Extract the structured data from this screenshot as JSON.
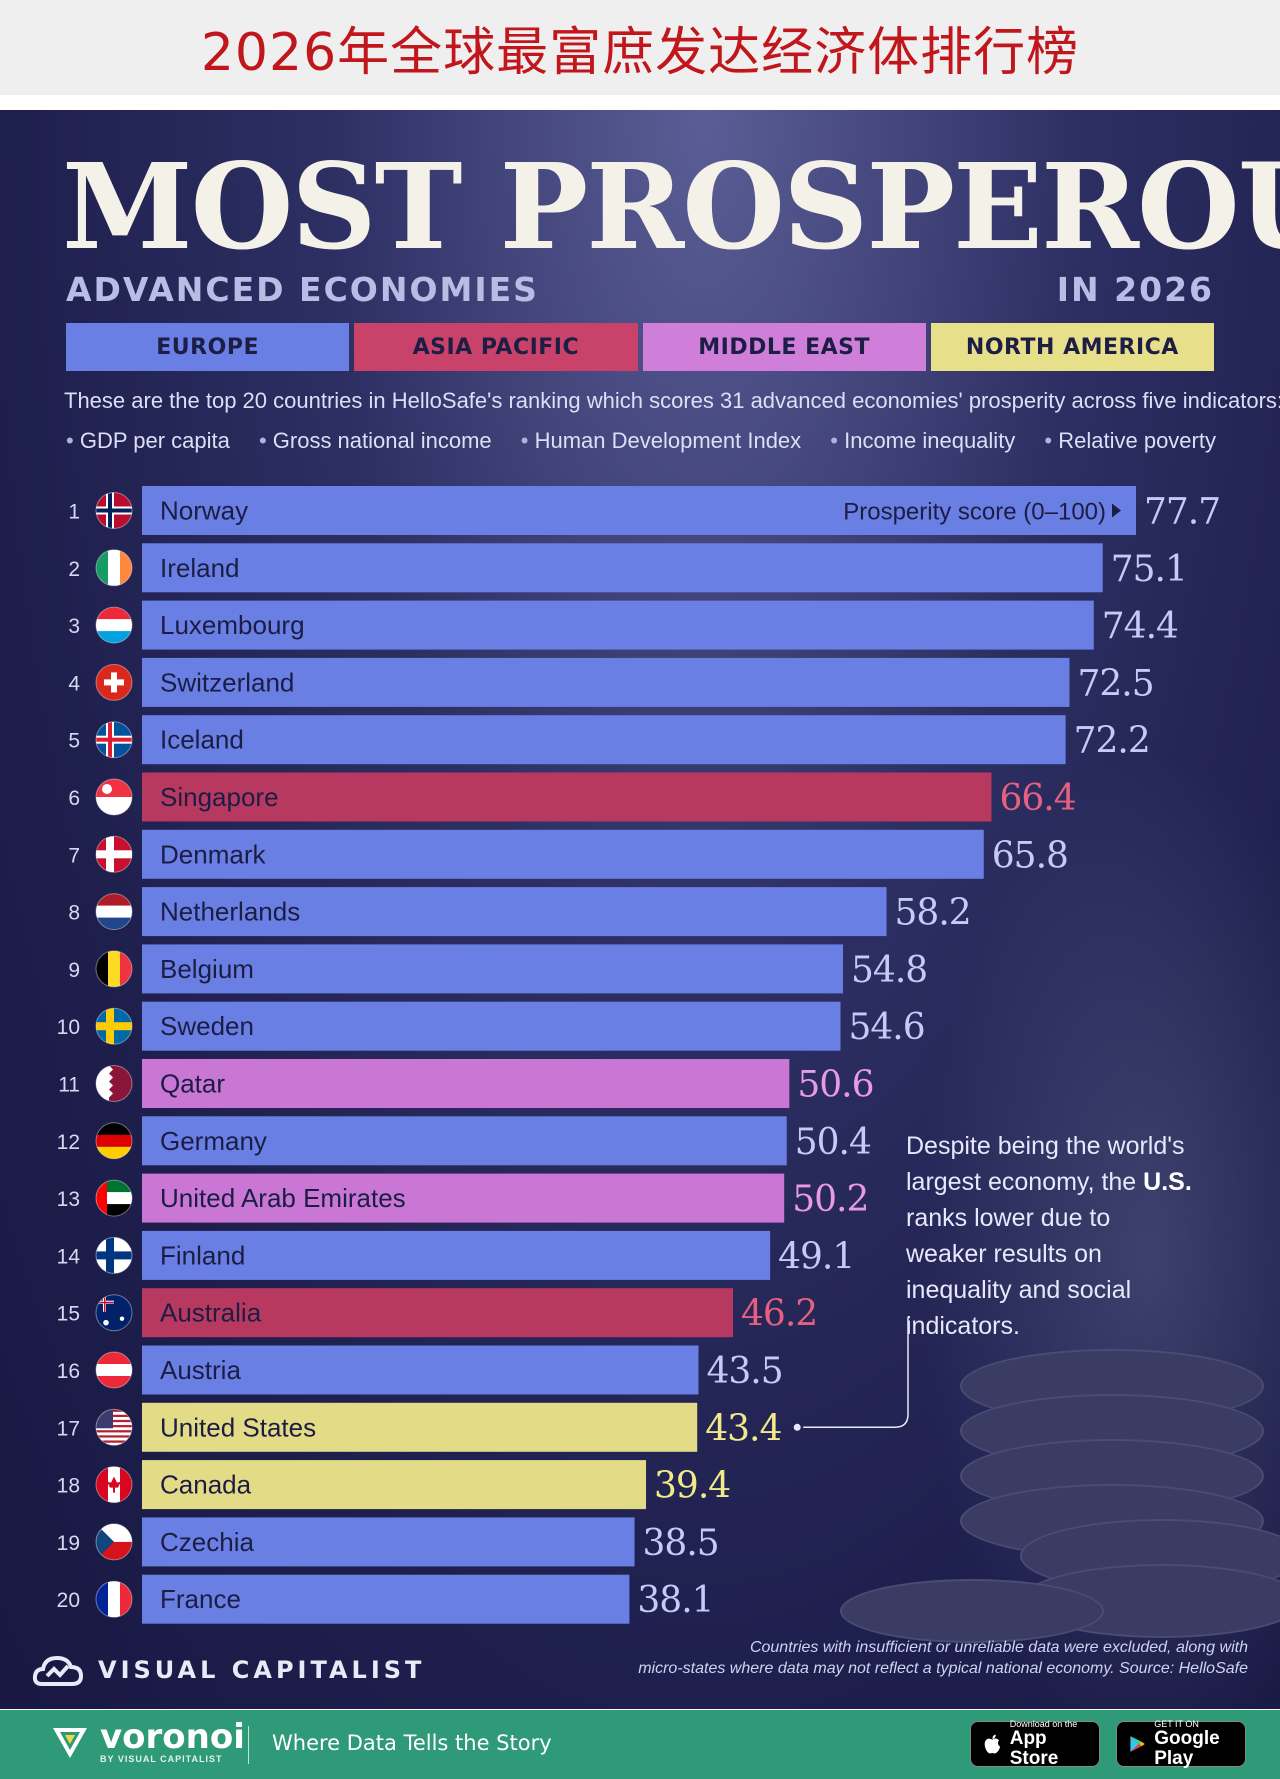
{
  "header": {
    "title": "2026年全球最富庶发达经济体排行榜"
  },
  "poster": {
    "title": "MOST PROSPEROUS",
    "subtitle_left": "ADVANCED ECONOMIES",
    "subtitle_right": "IN 2026",
    "description": "These are the top 20 countries in HelloSafe's ranking which scores 31 advanced economies' prosperity across five indicators:",
    "indicators": [
      "GDP per capita",
      "Gross national income",
      "Human Development Index",
      "Income inequality",
      "Relative poverty"
    ],
    "score_label": "Prosperity score (0–100)",
    "note_before": "Despite being the world's largest economy, the ",
    "note_bold": "U.S.",
    "note_after": " ranks lower due to weaker results on inequality and social indicators.",
    "brand": "VISUAL CAPITALIST",
    "source_line1": "Countries with insufficient or unreliable data were excluded, along with",
    "source_line2": "micro-states where data may not reflect a typical national economy. Source: HelloSafe"
  },
  "footer": {
    "brand": "voronoi",
    "brand_sub": "BY VISUAL CAPITALIST",
    "tagline": "Where Data Tells the Story",
    "appstore_small": "Download on the",
    "appstore_big": "App Store",
    "googleplay_small": "GET IT ON",
    "googleplay_big": "Google Play"
  },
  "chart_data": {
    "type": "bar",
    "orientation": "horizontal",
    "xlim": [
      0,
      77.7
    ],
    "regions": [
      {
        "name": "EUROPE",
        "color": "#6a7fe3",
        "label_color": "#c4cbf7"
      },
      {
        "name": "ASIA PACIFIC",
        "color": "#b8395f",
        "label_color": "#e8607f"
      },
      {
        "name": "MIDDLE EAST",
        "color": "#c976d4",
        "label_color": "#e99ae6"
      },
      {
        "name": "NORTH AMERICA",
        "color": "#e4db86",
        "label_color": "#f1e98a"
      }
    ],
    "rows": [
      {
        "rank": "1",
        "country": "Norway",
        "value": 77.7,
        "region": "EUROPE",
        "flag": "norway"
      },
      {
        "rank": "2",
        "country": "Ireland",
        "value": 75.1,
        "region": "EUROPE",
        "flag": "ireland"
      },
      {
        "rank": "3",
        "country": "Luxembourg",
        "value": 74.4,
        "region": "EUROPE",
        "flag": "luxembourg"
      },
      {
        "rank": "4",
        "country": "Switzerland",
        "value": 72.5,
        "region": "EUROPE",
        "flag": "switzerland"
      },
      {
        "rank": "5",
        "country": "Iceland",
        "value": 72.2,
        "region": "EUROPE",
        "flag": "iceland"
      },
      {
        "rank": "6",
        "country": "Singapore",
        "value": 66.4,
        "region": "ASIA PACIFIC",
        "flag": "singapore"
      },
      {
        "rank": "7",
        "country": "Denmark",
        "value": 65.8,
        "region": "EUROPE",
        "flag": "denmark"
      },
      {
        "rank": "8",
        "country": "Netherlands",
        "value": 58.2,
        "region": "EUROPE",
        "flag": "netherlands"
      },
      {
        "rank": "9",
        "country": "Belgium",
        "value": 54.8,
        "region": "EUROPE",
        "flag": "belgium"
      },
      {
        "rank": "10",
        "country": "Sweden",
        "value": 54.6,
        "region": "EUROPE",
        "flag": "sweden"
      },
      {
        "rank": "11",
        "country": "Qatar",
        "value": 50.6,
        "region": "MIDDLE EAST",
        "flag": "qatar"
      },
      {
        "rank": "12",
        "country": "Germany",
        "value": 50.4,
        "region": "EUROPE",
        "flag": "germany"
      },
      {
        "rank": "13",
        "country": "United Arab Emirates",
        "value": 50.2,
        "region": "MIDDLE EAST",
        "flag": "uae"
      },
      {
        "rank": "14",
        "country": "Finland",
        "value": 49.1,
        "region": "EUROPE",
        "flag": "finland"
      },
      {
        "rank": "15",
        "country": "Australia",
        "value": 46.2,
        "region": "ASIA PACIFIC",
        "flag": "australia"
      },
      {
        "rank": "16",
        "country": "Austria",
        "value": 43.5,
        "region": "EUROPE",
        "flag": "austria"
      },
      {
        "rank": "17",
        "country": "United States",
        "value": 43.4,
        "region": "NORTH AMERICA",
        "flag": "usa"
      },
      {
        "rank": "18",
        "country": "Canada",
        "value": 39.4,
        "region": "NORTH AMERICA",
        "flag": "canada"
      },
      {
        "rank": "19",
        "country": "Czechia",
        "value": 38.5,
        "region": "EUROPE",
        "flag": "czechia"
      },
      {
        "rank": "20",
        "country": "France",
        "value": 38.1,
        "region": "EUROPE",
        "flag": "france"
      }
    ]
  }
}
